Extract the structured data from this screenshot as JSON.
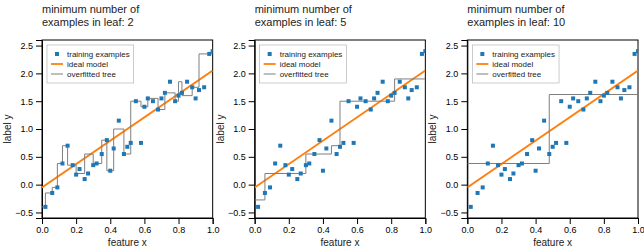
{
  "chart_data": [
    {
      "type": "scatter",
      "title": "minimum number of\nexamples in leaf: 2",
      "x_label": "feature x",
      "y_label": "label y",
      "xlim": [
        0.0,
        1.0
      ],
      "ylim": [
        -0.6,
        2.6
      ],
      "xticks": [
        {
          "value": 0.0,
          "label": "0.0"
        },
        0.2,
        0.4,
        0.6,
        0.8,
        {
          "value": 1.0,
          "label": "1.0"
        }
      ],
      "yticks": [
        {
          "value": -0.5,
          "label": "−0.5"
        },
        {
          "value": 0.0,
          "label": "0.0"
        },
        0.5,
        {
          "value": 1.0,
          "label": "1.0"
        },
        1.5,
        {
          "value": 2.0,
          "label": "2.0"
        },
        2.5
      ],
      "grid": false,
      "legend": "upper left",
      "series": [
        {
          "name": "training examples",
          "type": "scatter",
          "marker": "square",
          "color": "#1f77b4",
          "x": [
            0.02,
            0.06,
            0.09,
            0.12,
            0.15,
            0.18,
            0.2,
            0.22,
            0.25,
            0.27,
            0.3,
            0.32,
            0.35,
            0.38,
            0.4,
            0.42,
            0.45,
            0.48,
            0.5,
            0.52,
            0.55,
            0.58,
            0.6,
            0.62,
            0.65,
            0.68,
            0.7,
            0.72,
            0.75,
            0.78,
            0.8,
            0.82,
            0.85,
            0.88,
            0.9,
            0.92,
            0.95,
            0.98,
            1.0
          ],
          "values": [
            -0.4,
            -0.15,
            -0.05,
            0.38,
            0.7,
            0.35,
            0.18,
            0.28,
            0.1,
            0.2,
            0.35,
            0.38,
            0.55,
            0.8,
            0.25,
            0.65,
            1.15,
            0.55,
            0.68,
            0.75,
            1.5,
            0.75,
            1.4,
            1.55,
            1.5,
            1.35,
            1.55,
            1.65,
            1.85,
            1.5,
            1.6,
            1.65,
            1.85,
            1.75,
            1.55,
            1.7,
            1.75,
            2.35,
            2.4
          ]
        },
        {
          "name": "ideal model",
          "type": "line",
          "color": "#ff7f0e",
          "x": [
            0.0,
            1.0
          ],
          "values": [
            -0.05,
            2.05
          ]
        },
        {
          "name": "overfitted tree",
          "type": "line",
          "color": "#7f7f7f",
          "segments": [
            [
              [
                0.0,
                0.02
              ],
              [
                -0.4,
                -0.4
              ]
            ],
            [
              [
                0.02,
                0.02
              ],
              [
                -0.4,
                -0.15
              ]
            ],
            [
              [
                0.02,
                0.06
              ],
              [
                -0.15,
                -0.15
              ]
            ],
            [
              [
                0.06,
                0.06
              ],
              [
                -0.15,
                -0.05
              ]
            ],
            [
              [
                0.06,
                0.09
              ],
              [
                -0.05,
                -0.05
              ]
            ],
            [
              [
                0.09,
                0.09
              ],
              [
                -0.05,
                0.38
              ]
            ],
            [
              [
                0.09,
                0.12
              ],
              [
                0.38,
                0.38
              ]
            ],
            [
              [
                0.12,
                0.12
              ],
              [
                0.38,
                0.7
              ]
            ],
            [
              [
                0.12,
                0.15
              ],
              [
                0.7,
                0.7
              ]
            ],
            [
              [
                0.15,
                0.15
              ],
              [
                0.7,
                0.35
              ]
            ],
            [
              [
                0.15,
                0.2
              ],
              [
                0.35,
                0.35
              ]
            ],
            [
              [
                0.2,
                0.2
              ],
              [
                0.35,
                0.2
              ]
            ],
            [
              [
                0.2,
                0.25
              ],
              [
                0.2,
                0.2
              ]
            ],
            [
              [
                0.25,
                0.25
              ],
              [
                0.2,
                0.55
              ]
            ],
            [
              [
                0.25,
                0.3
              ],
              [
                0.55,
                0.55
              ]
            ],
            [
              [
                0.3,
                0.3
              ],
              [
                0.55,
                0.38
              ]
            ],
            [
              [
                0.3,
                0.35
              ],
              [
                0.38,
                0.38
              ]
            ],
            [
              [
                0.35,
                0.35
              ],
              [
                0.38,
                0.8
              ]
            ],
            [
              [
                0.35,
                0.38
              ],
              [
                0.8,
                0.8
              ]
            ],
            [
              [
                0.38,
                0.38
              ],
              [
                0.8,
                0.25
              ]
            ],
            [
              [
                0.38,
                0.42
              ],
              [
                0.25,
                0.25
              ]
            ],
            [
              [
                0.42,
                0.42
              ],
              [
                0.25,
                1.0
              ]
            ],
            [
              [
                0.42,
                0.48
              ],
              [
                1.0,
                1.0
              ]
            ],
            [
              [
                0.48,
                0.48
              ],
              [
                1.0,
                0.55
              ]
            ],
            [
              [
                0.48,
                0.52
              ],
              [
                0.55,
                0.55
              ]
            ],
            [
              [
                0.52,
                0.52
              ],
              [
                0.55,
                1.5
              ]
            ],
            [
              [
                0.52,
                0.58
              ],
              [
                1.5,
                1.5
              ]
            ],
            [
              [
                0.58,
                0.58
              ],
              [
                1.5,
                1.4
              ]
            ],
            [
              [
                0.58,
                0.62
              ],
              [
                1.4,
                1.4
              ]
            ],
            [
              [
                0.62,
                0.62
              ],
              [
                1.4,
                1.55
              ]
            ],
            [
              [
                0.62,
                0.68
              ],
              [
                1.55,
                1.55
              ]
            ],
            [
              [
                0.68,
                0.68
              ],
              [
                1.55,
                1.35
              ]
            ],
            [
              [
                0.68,
                0.72
              ],
              [
                1.35,
                1.35
              ]
            ],
            [
              [
                0.72,
                0.72
              ],
              [
                1.35,
                1.65
              ]
            ],
            [
              [
                0.72,
                0.78
              ],
              [
                1.65,
                1.65
              ]
            ],
            [
              [
                0.78,
                0.78
              ],
              [
                1.65,
                1.5
              ]
            ],
            [
              [
                0.78,
                0.8
              ],
              [
                1.5,
                1.5
              ]
            ],
            [
              [
                0.8,
                0.8
              ],
              [
                1.5,
                1.85
              ]
            ],
            [
              [
                0.8,
                0.82
              ],
              [
                1.85,
                1.85
              ]
            ],
            [
              [
                0.82,
                0.82
              ],
              [
                1.85,
                1.6
              ]
            ],
            [
              [
                0.82,
                0.88
              ],
              [
                1.6,
                1.6
              ]
            ],
            [
              [
                0.88,
                0.88
              ],
              [
                1.6,
                1.75
              ]
            ],
            [
              [
                0.88,
                0.92
              ],
              [
                1.75,
                1.75
              ]
            ],
            [
              [
                0.92,
                0.92
              ],
              [
                1.75,
                2.35
              ]
            ],
            [
              [
                0.92,
                1.0
              ],
              [
                2.35,
                2.35
              ]
            ]
          ]
        }
      ]
    },
    {
      "type": "scatter",
      "title": "minimum number of\nexamples in leaf: 5",
      "x_label": "feature x",
      "y_label": "label y",
      "xlim": [
        0.0,
        1.0
      ],
      "ylim": [
        -0.6,
        2.6
      ],
      "xticks": [
        {
          "value": 0.0,
          "label": "0.0"
        },
        0.2,
        0.4,
        0.6,
        0.8,
        {
          "value": 1.0,
          "label": "1.0"
        }
      ],
      "yticks": [
        {
          "value": -0.5,
          "label": "−0.5"
        },
        {
          "value": 0.0,
          "label": "0.0"
        },
        0.5,
        {
          "value": 1.0,
          "label": "1.0"
        },
        1.5,
        {
          "value": 2.0,
          "label": "2.0"
        },
        2.5
      ],
      "grid": false,
      "legend": "upper left",
      "series": [
        {
          "name": "training examples",
          "type": "scatter",
          "marker": "square",
          "color": "#1f77b4",
          "x": [
            0.02,
            0.06,
            0.09,
            0.12,
            0.15,
            0.18,
            0.2,
            0.22,
            0.25,
            0.27,
            0.3,
            0.32,
            0.35,
            0.38,
            0.4,
            0.42,
            0.45,
            0.48,
            0.5,
            0.52,
            0.55,
            0.58,
            0.6,
            0.62,
            0.65,
            0.68,
            0.7,
            0.72,
            0.75,
            0.78,
            0.8,
            0.82,
            0.85,
            0.88,
            0.9,
            0.92,
            0.95,
            0.98,
            1.0
          ],
          "values": [
            -0.4,
            -0.15,
            -0.05,
            0.38,
            0.7,
            0.35,
            0.18,
            0.28,
            0.1,
            0.2,
            0.35,
            0.38,
            0.55,
            0.8,
            0.25,
            0.65,
            1.15,
            0.55,
            0.68,
            0.75,
            1.5,
            0.75,
            1.4,
            1.55,
            1.5,
            1.35,
            1.55,
            1.65,
            1.85,
            1.5,
            1.6,
            1.65,
            1.85,
            1.75,
            1.55,
            1.7,
            1.75,
            2.35,
            2.4
          ]
        },
        {
          "name": "ideal model",
          "type": "line",
          "color": "#ff7f0e",
          "x": [
            0.0,
            1.0
          ],
          "values": [
            -0.05,
            2.05
          ]
        },
        {
          "name": "overfitted tree",
          "type": "line",
          "color": "#7f7f7f",
          "segments": [
            [
              [
                0.0,
                0.06
              ],
              [
                -0.275,
                -0.275
              ]
            ],
            [
              [
                0.06,
                0.06
              ],
              [
                -0.275,
                0.2
              ]
            ],
            [
              [
                0.06,
                0.3
              ],
              [
                0.2,
                0.2
              ]
            ],
            [
              [
                0.3,
                0.3
              ],
              [
                0.2,
                0.55
              ]
            ],
            [
              [
                0.3,
                0.45
              ],
              [
                0.55,
                0.55
              ]
            ],
            [
              [
                0.45,
                0.45
              ],
              [
                0.55,
                0.7
              ]
            ],
            [
              [
                0.45,
                0.5
              ],
              [
                0.7,
                0.7
              ]
            ],
            [
              [
                0.5,
                0.5
              ],
              [
                0.7,
                1.5
              ]
            ],
            [
              [
                0.5,
                0.82
              ],
              [
                1.5,
                1.5
              ]
            ],
            [
              [
                0.82,
                0.82
              ],
              [
                1.5,
                1.9
              ]
            ],
            [
              [
                0.82,
                1.0
              ],
              [
                1.9,
                1.9
              ]
            ]
          ]
        }
      ]
    },
    {
      "type": "scatter",
      "title": "minimum number of\nexamples in leaf: 10",
      "x_label": "feature x",
      "y_label": "label y",
      "xlim": [
        0.0,
        1.0
      ],
      "ylim": [
        -0.6,
        2.6
      ],
      "xticks": [
        {
          "value": 0.0,
          "label": "0.0"
        },
        0.2,
        0.4,
        0.6,
        0.8,
        {
          "value": 1.0,
          "label": "1.0"
        }
      ],
      "yticks": [
        {
          "value": -0.5,
          "label": "−0.5"
        },
        {
          "value": 0.0,
          "label": "0.0"
        },
        0.5,
        {
          "value": 1.0,
          "label": "1.0"
        },
        1.5,
        {
          "value": 2.0,
          "label": "2.0"
        },
        2.5
      ],
      "grid": false,
      "legend": "upper left",
      "series": [
        {
          "name": "training examples",
          "type": "scatter",
          "marker": "square",
          "color": "#1f77b4",
          "x": [
            0.02,
            0.06,
            0.09,
            0.12,
            0.15,
            0.18,
            0.2,
            0.22,
            0.25,
            0.27,
            0.3,
            0.32,
            0.35,
            0.38,
            0.4,
            0.42,
            0.45,
            0.48,
            0.5,
            0.52,
            0.55,
            0.58,
            0.6,
            0.62,
            0.65,
            0.68,
            0.7,
            0.72,
            0.75,
            0.78,
            0.8,
            0.82,
            0.85,
            0.88,
            0.9,
            0.92,
            0.95,
            0.98,
            1.0
          ],
          "values": [
            -0.4,
            -0.15,
            -0.05,
            0.38,
            0.7,
            0.35,
            0.18,
            0.28,
            0.1,
            0.2,
            0.35,
            0.38,
            0.55,
            0.8,
            0.25,
            0.65,
            1.15,
            0.55,
            0.68,
            0.75,
            1.5,
            0.75,
            1.4,
            1.55,
            1.5,
            1.35,
            1.55,
            1.65,
            1.85,
            1.5,
            1.6,
            1.65,
            1.85,
            1.75,
            1.55,
            1.7,
            1.75,
            2.35,
            2.4
          ]
        },
        {
          "name": "ideal model",
          "type": "line",
          "color": "#ff7f0e",
          "x": [
            0.0,
            1.0
          ],
          "values": [
            -0.05,
            2.05
          ]
        },
        {
          "name": "overfitted tree",
          "type": "line",
          "color": "#7f7f7f",
          "segments": [
            [
              [
                0.0,
                0.48
              ],
              [
                0.38,
                0.38
              ]
            ],
            [
              [
                0.48,
                0.48
              ],
              [
                0.38,
                1.62
              ]
            ],
            [
              [
                0.48,
                1.0
              ],
              [
                1.62,
                1.62
              ]
            ]
          ]
        }
      ]
    }
  ]
}
